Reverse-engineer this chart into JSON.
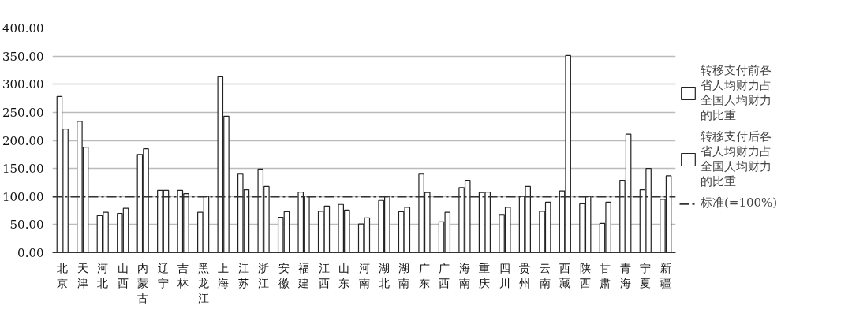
{
  "chart_data": {
    "type": "bar",
    "categories": [
      "北京",
      "天津",
      "河北",
      "山西",
      "内蒙古",
      "辽宁",
      "吉林",
      "黑龙江",
      "上海",
      "江苏",
      "浙江",
      "安徽",
      "福建",
      "江西",
      "山东",
      "河南",
      "湖北",
      "湖南",
      "广东",
      "广西",
      "海南",
      "重庆",
      "四川",
      "贵州",
      "云南",
      "西藏",
      "陕西",
      "甘肃",
      "青海",
      "宁夏",
      "新疆"
    ],
    "series": [
      {
        "name": "转移支付前各省人均财力占全国人均财力的比重",
        "color": "#ffffff",
        "values": [
          278,
          234,
          66,
          70,
          175,
          111,
          111,
          72,
          313,
          140,
          149,
          63,
          108,
          74,
          86,
          51,
          93,
          73,
          140,
          55,
          116,
          107,
          67,
          100,
          74,
          110,
          87,
          52,
          129,
          112,
          95
        ]
      },
      {
        "name": "转移支付后各省人均财力占全国人均财力的比重",
        "color": "#ffffff",
        "values": [
          220,
          188,
          72,
          79,
          185,
          111,
          105,
          100,
          243,
          112,
          118,
          73,
          101,
          83,
          76,
          62,
          100,
          81,
          107,
          72,
          129,
          108,
          81,
          118,
          90,
          351,
          100,
          90,
          211,
          150,
          137
        ]
      }
    ],
    "ylim": [
      0,
      400
    ],
    "yticks": [
      {
        "value": 0,
        "label": "0.00"
      },
      {
        "value": 50,
        "label": "50.00"
      },
      {
        "value": 100,
        "label": "100.00"
      },
      {
        "value": 150,
        "label": "150.00"
      },
      {
        "value": 200,
        "label": "200.00"
      },
      {
        "value": 250,
        "label": "250.00"
      },
      {
        "value": 300,
        "label": "300.00"
      },
      {
        "value": 350,
        "label": "350.00"
      },
      {
        "value": 400,
        "label": "400.00"
      }
    ],
    "ref_lines": [
      {
        "axis": "y",
        "value": 100,
        "label": "标准(=100%)",
        "color": "#333333",
        "line_style": "dashdot"
      }
    ],
    "grid": "y",
    "legend": "right"
  }
}
